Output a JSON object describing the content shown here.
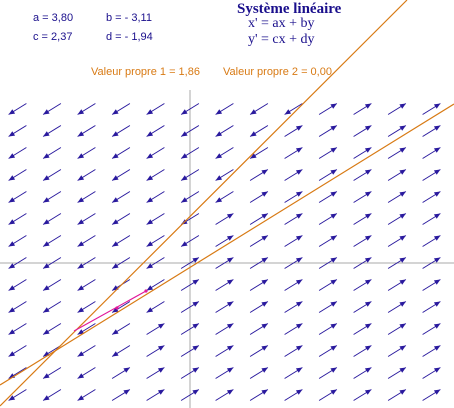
{
  "params": {
    "a": "a = 3,80",
    "b": "b = - 3,11",
    "c": "c = 2,37",
    "d": "d = - 1,94"
  },
  "header": {
    "title": "Système linéaire",
    "eq1": "x' = ax + by",
    "eq2": "y' = cx + dy"
  },
  "eigen": {
    "v1": "Valeur propre 1 = 1,86",
    "v2": "Valeur propre 2 = 0,00"
  },
  "colors": {
    "text": "#1a0f8c",
    "arrow": "#2a1a9e",
    "eigenline": "#d87a14",
    "axis": "#a8a8a8",
    "trajectory": "#e0189a"
  }
}
